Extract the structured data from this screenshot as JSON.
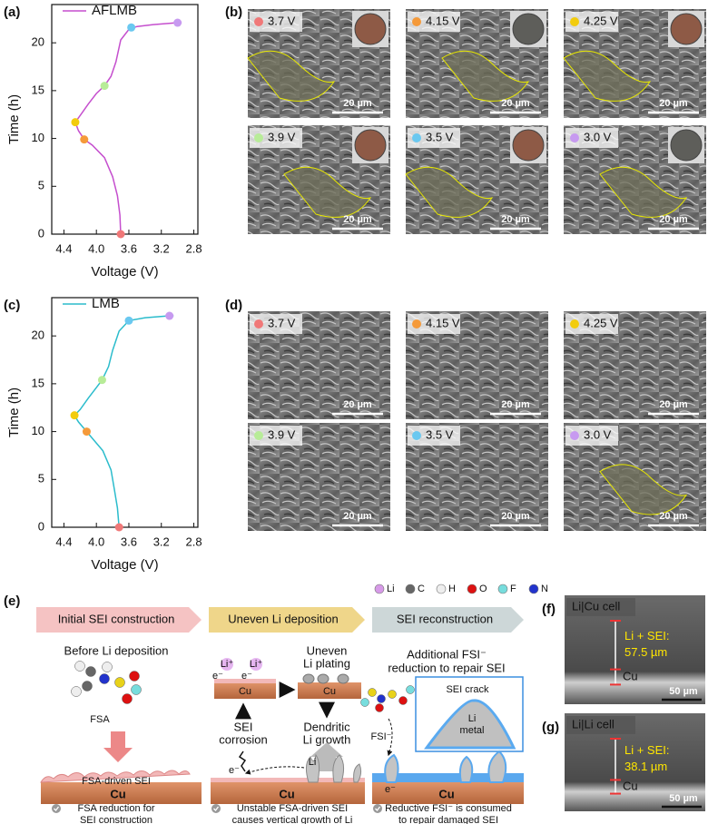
{
  "chart_data": [
    {
      "type": "line",
      "panel": "(a)",
      "xlabel": "Voltage (V)",
      "ylabel": "Time (h)",
      "xlim": [
        4.55,
        2.75
      ],
      "ylim": [
        0,
        24
      ],
      "xticks": [
        4.4,
        {
          "value": 4,
          "label": "4.0"
        },
        3.6,
        3.2,
        2.8
      ],
      "yticks": [
        0,
        5,
        10,
        15,
        20
      ],
      "series": [
        {
          "name": "AFLMB",
          "color": "#c54fce",
          "x": [
            3.7,
            3.71,
            3.74,
            3.8,
            3.9,
            4.05,
            4.15,
            4.22,
            4.26,
            4.2,
            4.1,
            4.0,
            3.9,
            3.82,
            3.76,
            3.7,
            3.6,
            3.5,
            3.3,
            3.0,
            2.95
          ],
          "values": [
            0,
            2,
            4,
            6,
            8,
            9.3,
            9.9,
            10.8,
            11.7,
            12.4,
            13.6,
            14.7,
            15.5,
            16.5,
            18,
            20.3,
            21.4,
            21.7,
            21.9,
            22.1,
            22.1
          ]
        }
      ],
      "points": {
        "x": [
          3.7,
          4.15,
          4.26,
          3.9,
          3.57,
          3.0
        ],
        "values": [
          0,
          9.9,
          11.7,
          15.5,
          21.6,
          22.1
        ],
        "colors": [
          "#f07878",
          "#f59a3a",
          "#f2cc0e",
          "#b8ec98",
          "#6ac8f0",
          "#c79af0"
        ]
      }
    },
    {
      "type": "line",
      "panel": "(c)",
      "xlabel": "Voltage (V)",
      "ylabel": "Time (h)",
      "xlim": [
        4.55,
        2.75
      ],
      "ylim": [
        0,
        24
      ],
      "xticks": [
        4.4,
        {
          "value": 4,
          "label": "4.0"
        },
        3.6,
        3.2,
        2.8
      ],
      "yticks": [
        0,
        5,
        10,
        15,
        20
      ],
      "series": [
        {
          "name": "LMB",
          "color": "#2bbccc",
          "x": [
            3.72,
            3.74,
            3.78,
            3.82,
            3.92,
            4.05,
            4.12,
            4.22,
            4.27,
            4.2,
            4.1,
            4.0,
            3.93,
            3.85,
            3.8,
            3.72,
            3.6,
            3.4,
            3.1,
            3.05
          ],
          "values": [
            0,
            2,
            4,
            6,
            8,
            9.3,
            10,
            11,
            11.7,
            12.3,
            13.5,
            14.6,
            15.4,
            16.8,
            18.5,
            20.5,
            21.6,
            21.9,
            22.1,
            22.1
          ]
        }
      ],
      "points": {
        "x": [
          3.72,
          4.12,
          4.27,
          3.93,
          3.6,
          3.1
        ],
        "values": [
          0,
          10,
          11.7,
          15.4,
          21.6,
          22.1
        ],
        "colors": [
          "#f07878",
          "#f59a3a",
          "#f2cc0e",
          "#b8ec98",
          "#6ac8f0",
          "#c79af0"
        ]
      }
    }
  ],
  "micrographs": [
    {
      "panel": "(b)",
      "tiles": [
        {
          "voltage": "3.7 V",
          "color": "#f07878",
          "scale": "20 µm"
        },
        {
          "voltage": "4.15 V",
          "color": "#f59a3a",
          "scale": "20 µm"
        },
        {
          "voltage": "4.25 V",
          "color": "#f2cc0e",
          "scale": "20 µm"
        },
        {
          "voltage": "3.9 V",
          "color": "#b8ec98",
          "scale": "20 µm"
        },
        {
          "voltage": "3.5 V",
          "color": "#6ac8f0",
          "scale": "20 µm"
        },
        {
          "voltage": "3.0 V",
          "color": "#c79af0",
          "scale": "20 µm"
        }
      ]
    },
    {
      "panel": "(d)",
      "tiles": [
        {
          "voltage": "3.7 V",
          "color": "#f07878",
          "scale": "20 µm"
        },
        {
          "voltage": "4.15 V",
          "color": "#f59a3a",
          "scale": "20 µm"
        },
        {
          "voltage": "4.25 V",
          "color": "#f2cc0e",
          "scale": "20 µm"
        },
        {
          "voltage": "3.9 V",
          "color": "#b8ec98",
          "scale": "20 µm"
        },
        {
          "voltage": "3.5 V",
          "color": "#6ac8f0",
          "scale": "20 µm"
        },
        {
          "voltage": "3.0 V",
          "color": "#c79af0",
          "scale": "20 µm"
        }
      ]
    }
  ],
  "scheme": {
    "panel": "(e)",
    "atoms": [
      {
        "name": "Li",
        "color": "#d79ae8"
      },
      {
        "name": "C",
        "color": "#666666"
      },
      {
        "name": "H",
        "color": "#eeeeee"
      },
      {
        "name": "O",
        "color": "#dd1111"
      },
      {
        "name": "F",
        "color": "#77dddd"
      },
      {
        "name": "N",
        "color": "#2233cc"
      }
    ],
    "stage1": {
      "title": "Initial SEI construction",
      "subtitle": "Before Li deposition",
      "molecule": "FSA",
      "layer": "FSA-driven SEI",
      "substrate": "Cu",
      "note": [
        "FSA reduction for",
        "SEI construction"
      ]
    },
    "stage2": {
      "title": "Uneven Li deposition",
      "ion": "Li⁺",
      "electron": "e⁻",
      "substrate": "Cu",
      "plating": [
        "Uneven",
        "Li plating"
      ],
      "corrosion": [
        "SEI",
        "corrosion"
      ],
      "growth": [
        "Dendritic",
        "Li growth"
      ],
      "li": "Li",
      "note": [
        "Unstable   FSA-driven   SEI",
        "causes vertical growth of Li"
      ]
    },
    "stage3": {
      "title": "SEI reconstruction",
      "subtitle": [
        "Additional FSI⁻",
        "reduction to repair SEI"
      ],
      "crack": "SEI crack",
      "metal": [
        "Li",
        "metal"
      ],
      "anion": "FSI⁻",
      "electron": "e⁻",
      "substrate": "Cu",
      "note": [
        "Reductive FSI⁻ is consumed",
        "to repair damaged SEI"
      ]
    }
  },
  "cross_sections": [
    {
      "panel": "(f)",
      "cell": "Li|Cu cell",
      "thickness_label": "Li + SEI:",
      "thickness": "57.5 µm",
      "substrate": "Cu",
      "scale": "50 µm"
    },
    {
      "panel": "(g)",
      "cell": "Li|Li cell",
      "thickness_label": "Li + SEI:",
      "thickness": "38.1 µm",
      "substrate": "Cu",
      "scale": "50 µm"
    }
  ]
}
